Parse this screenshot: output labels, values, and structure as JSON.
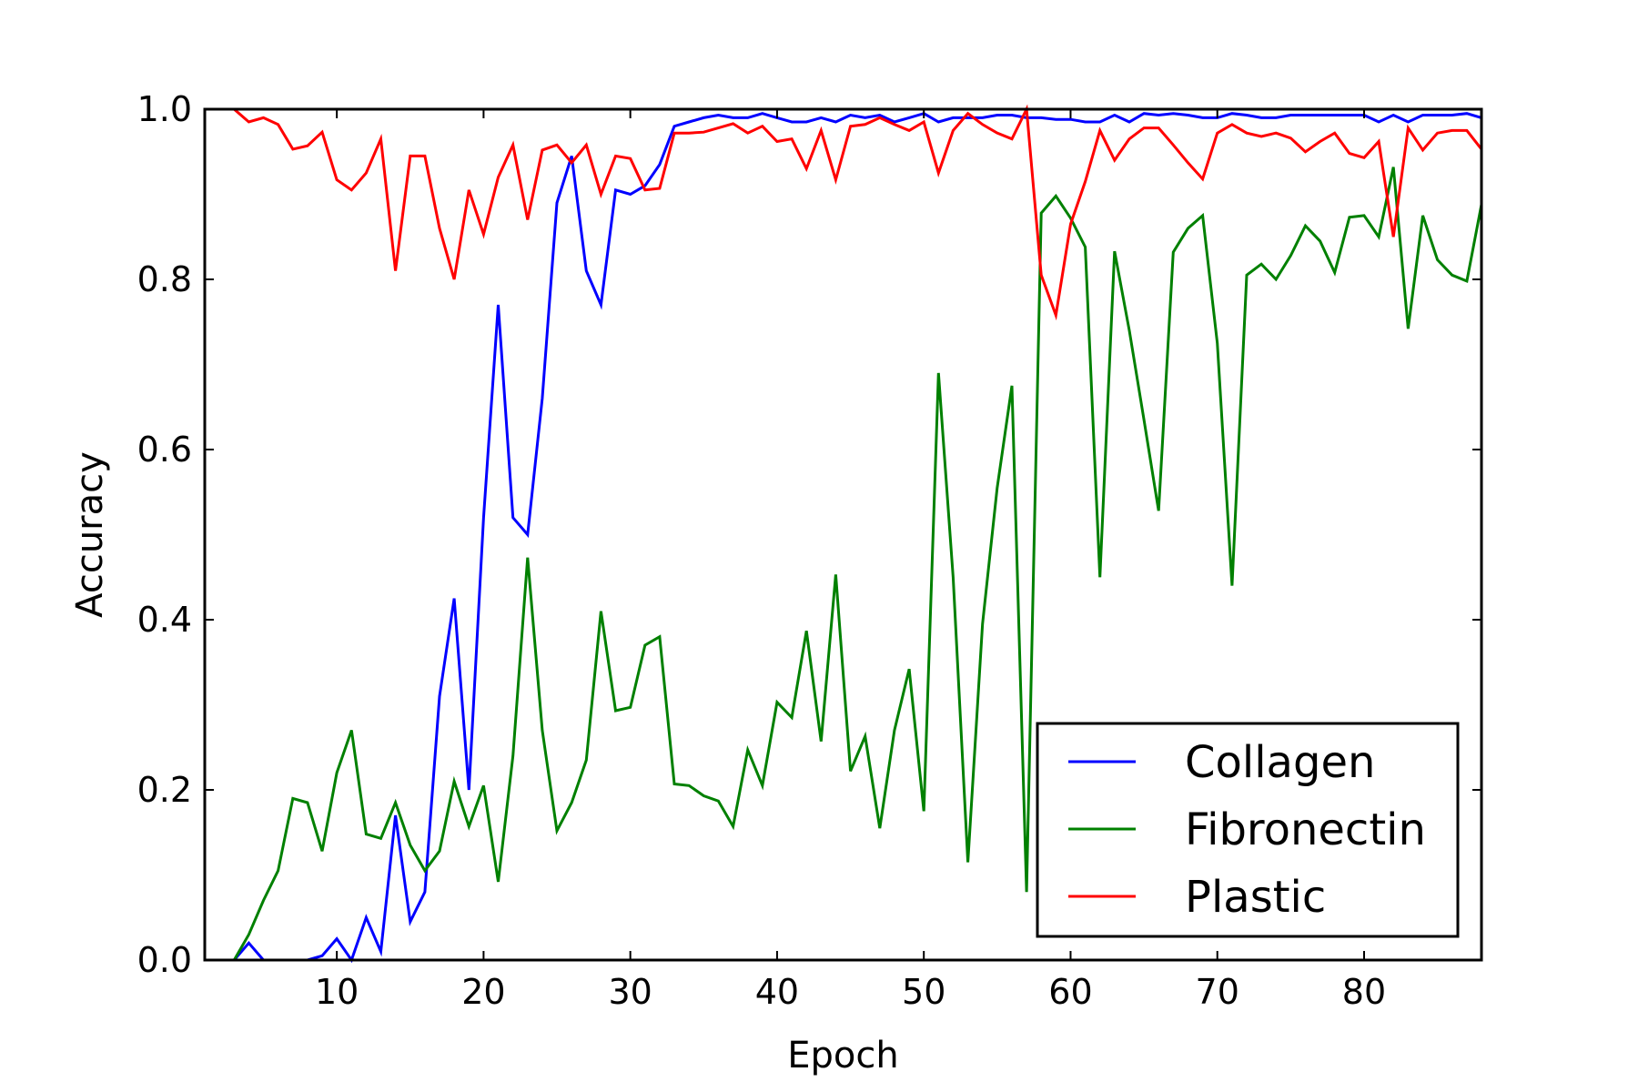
{
  "chart_data": {
    "type": "line",
    "title": "",
    "xlabel": "Epoch",
    "ylabel": "Accuracy",
    "xlim": [
      1,
      88
    ],
    "ylim": [
      0.0,
      1.0
    ],
    "xticks": [
      10,
      20,
      30,
      40,
      50,
      60,
      70,
      80
    ],
    "xtick_labels": [
      "10",
      "20",
      "30",
      "40",
      "50",
      "60",
      "70",
      "80"
    ],
    "yticks": [
      0.0,
      0.2,
      0.4,
      0.6,
      0.8,
      1.0
    ],
    "ytick_labels": [
      "0.0",
      "0.2",
      "0.4",
      "0.6",
      "0.8",
      "1.0"
    ],
    "grid": false,
    "legend_position": "lower-right",
    "series": [
      {
        "name": "Collagen",
        "color": "#0000ff",
        "x": [
          3,
          4,
          5,
          6,
          7,
          8,
          9,
          10,
          11,
          12,
          13,
          14,
          15,
          16,
          17,
          18,
          19,
          20,
          21,
          22,
          23,
          24,
          25,
          26,
          27,
          28,
          29,
          30,
          31,
          32,
          33,
          34,
          35,
          36,
          37,
          38,
          39,
          40,
          41,
          42,
          43,
          44,
          45,
          46,
          47,
          48,
          49,
          50,
          51,
          52,
          53,
          54,
          55,
          56,
          57,
          58,
          59,
          60,
          61,
          62,
          63,
          64,
          65,
          66,
          67,
          68,
          69,
          70,
          71,
          72,
          73,
          74,
          75,
          76,
          77,
          78,
          79,
          80,
          81,
          82,
          83,
          84,
          85,
          86,
          87,
          88
        ],
        "y": [
          0.0,
          0.02,
          0.0,
          0.0,
          0.0,
          0.0,
          0.005,
          0.025,
          0.0,
          0.05,
          0.01,
          0.17,
          0.045,
          0.08,
          0.31,
          0.425,
          0.2,
          0.52,
          0.77,
          0.52,
          0.5,
          0.66,
          0.89,
          0.945,
          0.81,
          0.77,
          0.905,
          0.9,
          0.91,
          0.935,
          0.98,
          0.985,
          0.99,
          0.993,
          0.99,
          0.99,
          0.995,
          0.99,
          0.985,
          0.985,
          0.99,
          0.985,
          0.993,
          0.99,
          0.993,
          0.985,
          0.99,
          0.995,
          0.985,
          0.99,
          0.99,
          0.99,
          0.993,
          0.993,
          0.99,
          0.99,
          0.988,
          0.988,
          0.985,
          0.985,
          0.993,
          0.985,
          0.995,
          0.993,
          0.995,
          0.993,
          0.99,
          0.99,
          0.995,
          0.993,
          0.99,
          0.99,
          0.993,
          0.993,
          0.993,
          0.993,
          0.993,
          0.993,
          0.985,
          0.993,
          0.985,
          0.993,
          0.993,
          0.993,
          0.995,
          0.99
        ]
      },
      {
        "name": "Fibronectin",
        "color": "#008000",
        "x": [
          3,
          4,
          5,
          6,
          7,
          8,
          9,
          10,
          11,
          12,
          13,
          14,
          15,
          16,
          17,
          18,
          19,
          20,
          21,
          22,
          23,
          24,
          25,
          26,
          27,
          28,
          29,
          30,
          31,
          32,
          33,
          34,
          35,
          36,
          37,
          38,
          39,
          40,
          41,
          42,
          43,
          44,
          45,
          46,
          47,
          48,
          49,
          50,
          51,
          52,
          53,
          54,
          55,
          56,
          57,
          58,
          59,
          60,
          61,
          62,
          63,
          64,
          65,
          66,
          67,
          68,
          69,
          70,
          71,
          72,
          73,
          74,
          75,
          76,
          77,
          78,
          79,
          80,
          81,
          82,
          83,
          84,
          85,
          86,
          87,
          88
        ],
        "y": [
          0.0,
          0.03,
          0.07,
          0.105,
          0.19,
          0.185,
          0.128,
          0.22,
          0.27,
          0.148,
          0.143,
          0.185,
          0.135,
          0.105,
          0.128,
          0.21,
          0.157,
          0.205,
          0.092,
          0.24,
          0.473,
          0.27,
          0.152,
          0.185,
          0.235,
          0.41,
          0.293,
          0.297,
          0.37,
          0.38,
          0.207,
          0.205,
          0.193,
          0.187,
          0.157,
          0.247,
          0.205,
          0.303,
          0.285,
          0.387,
          0.257,
          0.453,
          0.222,
          0.263,
          0.155,
          0.27,
          0.342,
          0.175,
          0.69,
          0.45,
          0.115,
          0.395,
          0.555,
          0.675,
          0.08,
          0.878,
          0.898,
          0.872,
          0.838,
          0.45,
          0.833,
          0.74,
          0.635,
          0.528,
          0.832,
          0.86,
          0.875,
          0.725,
          0.44,
          0.805,
          0.818,
          0.8,
          0.828,
          0.863,
          0.845,
          0.808,
          0.873,
          0.875,
          0.85,
          0.932,
          0.742,
          0.875,
          0.823,
          0.805,
          0.798,
          0.888
        ]
      },
      {
        "name": "Plastic",
        "color": "#ff0000",
        "x": [
          3,
          4,
          5,
          6,
          7,
          8,
          9,
          10,
          11,
          12,
          13,
          14,
          15,
          16,
          17,
          18,
          19,
          20,
          21,
          22,
          23,
          24,
          25,
          26,
          27,
          28,
          29,
          30,
          31,
          32,
          33,
          34,
          35,
          36,
          37,
          38,
          39,
          40,
          41,
          42,
          43,
          44,
          45,
          46,
          47,
          48,
          49,
          50,
          51,
          52,
          53,
          54,
          55,
          56,
          57,
          58,
          59,
          60,
          61,
          62,
          63,
          64,
          65,
          66,
          67,
          68,
          69,
          70,
          71,
          72,
          73,
          74,
          75,
          76,
          77,
          78,
          79,
          80,
          81,
          82,
          83,
          84,
          85,
          86,
          87,
          88
        ],
        "y": [
          1.0,
          0.985,
          0.99,
          0.982,
          0.953,
          0.957,
          0.973,
          0.917,
          0.905,
          0.925,
          0.965,
          0.81,
          0.945,
          0.945,
          0.86,
          0.8,
          0.905,
          0.853,
          0.92,
          0.958,
          0.87,
          0.952,
          0.958,
          0.937,
          0.958,
          0.9,
          0.945,
          0.942,
          0.905,
          0.907,
          0.972,
          0.972,
          0.973,
          0.978,
          0.983,
          0.972,
          0.98,
          0.962,
          0.965,
          0.93,
          0.975,
          0.917,
          0.98,
          0.982,
          0.99,
          0.982,
          0.975,
          0.985,
          0.925,
          0.975,
          0.995,
          0.982,
          0.972,
          0.965,
          1.0,
          0.805,
          0.758,
          0.865,
          0.915,
          0.975,
          0.94,
          0.965,
          0.978,
          0.978,
          0.958,
          0.937,
          0.918,
          0.972,
          0.982,
          0.972,
          0.968,
          0.972,
          0.966,
          0.95,
          0.962,
          0.972,
          0.948,
          0.943,
          0.962,
          0.85,
          0.978,
          0.952,
          0.972,
          0.975,
          0.975,
          0.953
        ]
      }
    ]
  }
}
